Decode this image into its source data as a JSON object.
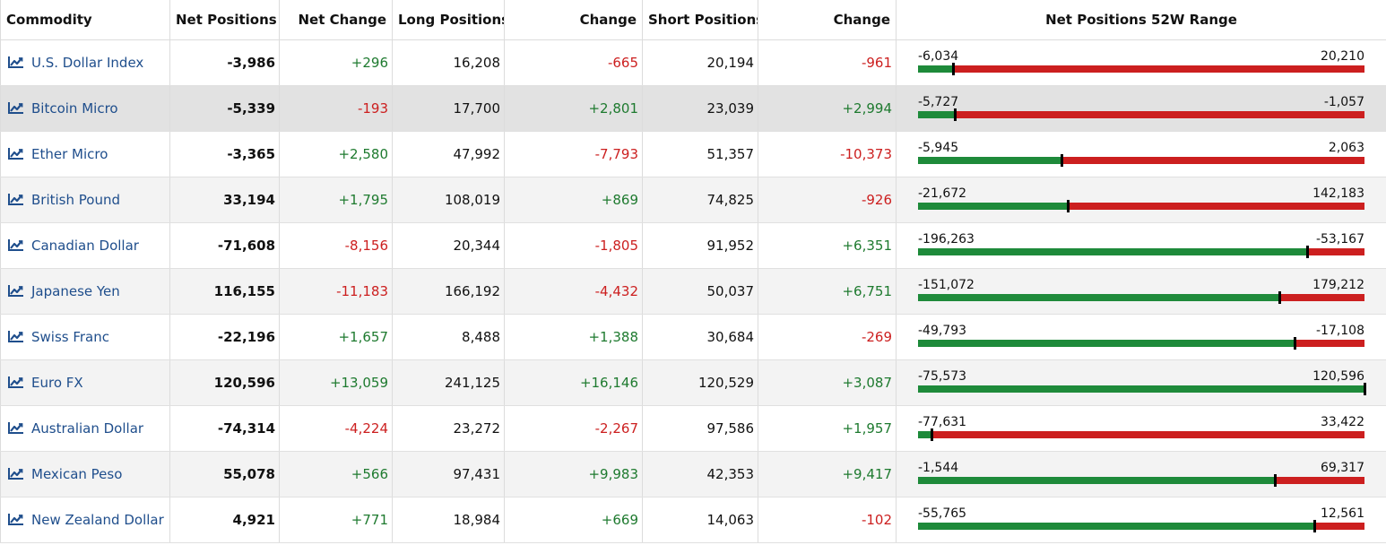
{
  "columns": {
    "commodity": "Commodity",
    "net_positions": "Net Positions",
    "net_change": "Net Change",
    "long_positions": "Long Positions",
    "long_change": "Change",
    "short_positions": "Short Positions",
    "short_change": "Change",
    "range": "Net Positions 52W Range"
  },
  "colors": {
    "positive": "#1e7a2f",
    "negative": "#cc1f1f",
    "link": "#1f4e8c",
    "bar_green": "#1e8a3a",
    "bar_red": "#cc1f1f"
  },
  "rows": [
    {
      "commodity": "U.S. Dollar Index",
      "net": "-3,986",
      "net_change": "+296",
      "long": "16,208",
      "long_change": "-665",
      "short": "20,194",
      "short_change": "-961",
      "range_low": "-6,034",
      "range_high": "20,210",
      "net_value": -3986,
      "low_value": -6034,
      "high_value": 20210
    },
    {
      "commodity": "Bitcoin Micro",
      "net": "-5,339",
      "net_change": "-193",
      "long": "17,700",
      "long_change": "+2,801",
      "short": "23,039",
      "short_change": "+2,994",
      "range_low": "-5,727",
      "range_high": "-1,057",
      "net_value": -5339,
      "low_value": -5727,
      "high_value": -1057
    },
    {
      "commodity": "Ether Micro",
      "net": "-3,365",
      "net_change": "+2,580",
      "long": "47,992",
      "long_change": "-7,793",
      "short": "51,357",
      "short_change": "-10,373",
      "range_low": "-5,945",
      "range_high": "2,063",
      "net_value": -3365,
      "low_value": -5945,
      "high_value": 2063
    },
    {
      "commodity": "British Pound",
      "net": "33,194",
      "net_change": "+1,795",
      "long": "108,019",
      "long_change": "+869",
      "short": "74,825",
      "short_change": "-926",
      "range_low": "-21,672",
      "range_high": "142,183",
      "net_value": 33194,
      "low_value": -21672,
      "high_value": 142183
    },
    {
      "commodity": "Canadian Dollar",
      "net": "-71,608",
      "net_change": "-8,156",
      "long": "20,344",
      "long_change": "-1,805",
      "short": "91,952",
      "short_change": "+6,351",
      "range_low": "-196,263",
      "range_high": "-53,167",
      "net_value": -71608,
      "low_value": -196263,
      "high_value": -53167
    },
    {
      "commodity": "Japanese Yen",
      "net": "116,155",
      "net_change": "-11,183",
      "long": "166,192",
      "long_change": "-4,432",
      "short": "50,037",
      "short_change": "+6,751",
      "range_low": "-151,072",
      "range_high": "179,212",
      "net_value": 116155,
      "low_value": -151072,
      "high_value": 179212
    },
    {
      "commodity": "Swiss Franc",
      "net": "-22,196",
      "net_change": "+1,657",
      "long": "8,488",
      "long_change": "+1,388",
      "short": "30,684",
      "short_change": "-269",
      "range_low": "-49,793",
      "range_high": "-17,108",
      "net_value": -22196,
      "low_value": -49793,
      "high_value": -17108
    },
    {
      "commodity": "Euro FX",
      "net": "120,596",
      "net_change": "+13,059",
      "long": "241,125",
      "long_change": "+16,146",
      "short": "120,529",
      "short_change": "+3,087",
      "range_low": "-75,573",
      "range_high": "120,596",
      "net_value": 120596,
      "low_value": -75573,
      "high_value": 120596
    },
    {
      "commodity": "Australian Dollar",
      "net": "-74,314",
      "net_change": "-4,224",
      "long": "23,272",
      "long_change": "-2,267",
      "short": "97,586",
      "short_change": "+1,957",
      "range_low": "-77,631",
      "range_high": "33,422",
      "net_value": -74314,
      "low_value": -77631,
      "high_value": 33422
    },
    {
      "commodity": "Mexican Peso",
      "net": "55,078",
      "net_change": "+566",
      "long": "97,431",
      "long_change": "+9,983",
      "short": "42,353",
      "short_change": "+9,417",
      "range_low": "-1,544",
      "range_high": "69,317",
      "net_value": 55078,
      "low_value": -1544,
      "high_value": 69317
    },
    {
      "commodity": "New Zealand Dollar",
      "net": "4,921",
      "net_change": "+771",
      "long": "18,984",
      "long_change": "+669",
      "short": "14,063",
      "short_change": "-102",
      "range_low": "-55,765",
      "range_high": "12,561",
      "net_value": 4921,
      "low_value": -55765,
      "high_value": 12561
    }
  ]
}
